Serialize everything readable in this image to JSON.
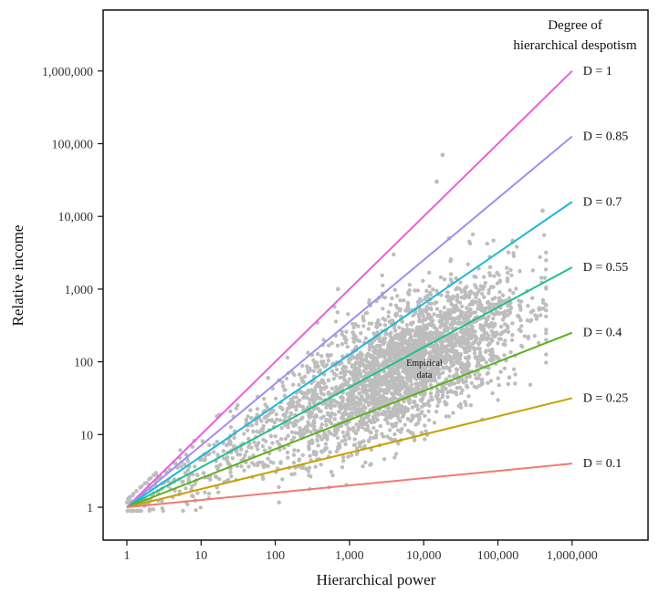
{
  "chart_data": {
    "type": "scatter",
    "xlabel": "Hierarchical power",
    "ylabel": "Relative income",
    "xscale": "log",
    "yscale": "log",
    "xlim": [
      0.5,
      12000000
    ],
    "ylim": [
      0.32,
      3200000
    ],
    "x_ticks": [
      1,
      10,
      100,
      1000,
      10000,
      100000,
      1000000
    ],
    "x_tick_labels": [
      "1",
      "10",
      "100",
      "1,000",
      "10,000",
      "100,000",
      "1,000,000"
    ],
    "y_ticks": [
      1,
      10,
      100,
      1000,
      10000,
      100000,
      1000000
    ],
    "y_tick_labels": [
      "1",
      "10",
      "100",
      "1,000",
      "10,000",
      "100,000",
      "1,000,000"
    ],
    "grid": false,
    "legend_title": "Degree of hierarchical despotism",
    "legend_placement": "right, at line ends",
    "series": [
      {
        "name": "D = 1",
        "D": 1,
        "color": "#e85fd6",
        "x": [
          1,
          1000000
        ]
      },
      {
        "name": "D = 0.85",
        "D": 0.85,
        "color": "#a58cf0",
        "x": [
          1,
          1000000
        ]
      },
      {
        "name": "D = 0.7",
        "D": 0.7,
        "color": "#1cb8d8",
        "x": [
          1,
          1000000
        ]
      },
      {
        "name": "D = 0.55",
        "D": 0.55,
        "color": "#1fbf8f",
        "x": [
          1,
          1000000
        ]
      },
      {
        "name": "D = 0.4",
        "D": 0.4,
        "color": "#5ab21a",
        "x": [
          1,
          1000000
        ]
      },
      {
        "name": "D = 0.25",
        "D": 0.25,
        "color": "#c9a000",
        "x": [
          1,
          1000000
        ]
      },
      {
        "name": "D = 0.1",
        "D": 0.1,
        "color": "#f07a72",
        "x": [
          1,
          1000000
        ]
      }
    ],
    "annotation": {
      "text_line1": "Empirical",
      "text_line2": "data",
      "x": 8000,
      "y": 85
    },
    "scatter": {
      "color": "#bdbdbd",
      "count": 3200,
      "core_center_log10": [
        3.7,
        2.0
      ],
      "outliers": [
        {
          "x": 18000,
          "y": 70000
        },
        {
          "x": 15000,
          "y": 30000
        },
        {
          "x": 400000,
          "y": 12000
        },
        {
          "x": 22000,
          "y": 5000
        },
        {
          "x": 700,
          "y": 1000
        },
        {
          "x": 80,
          "y": 60
        }
      ]
    }
  }
}
